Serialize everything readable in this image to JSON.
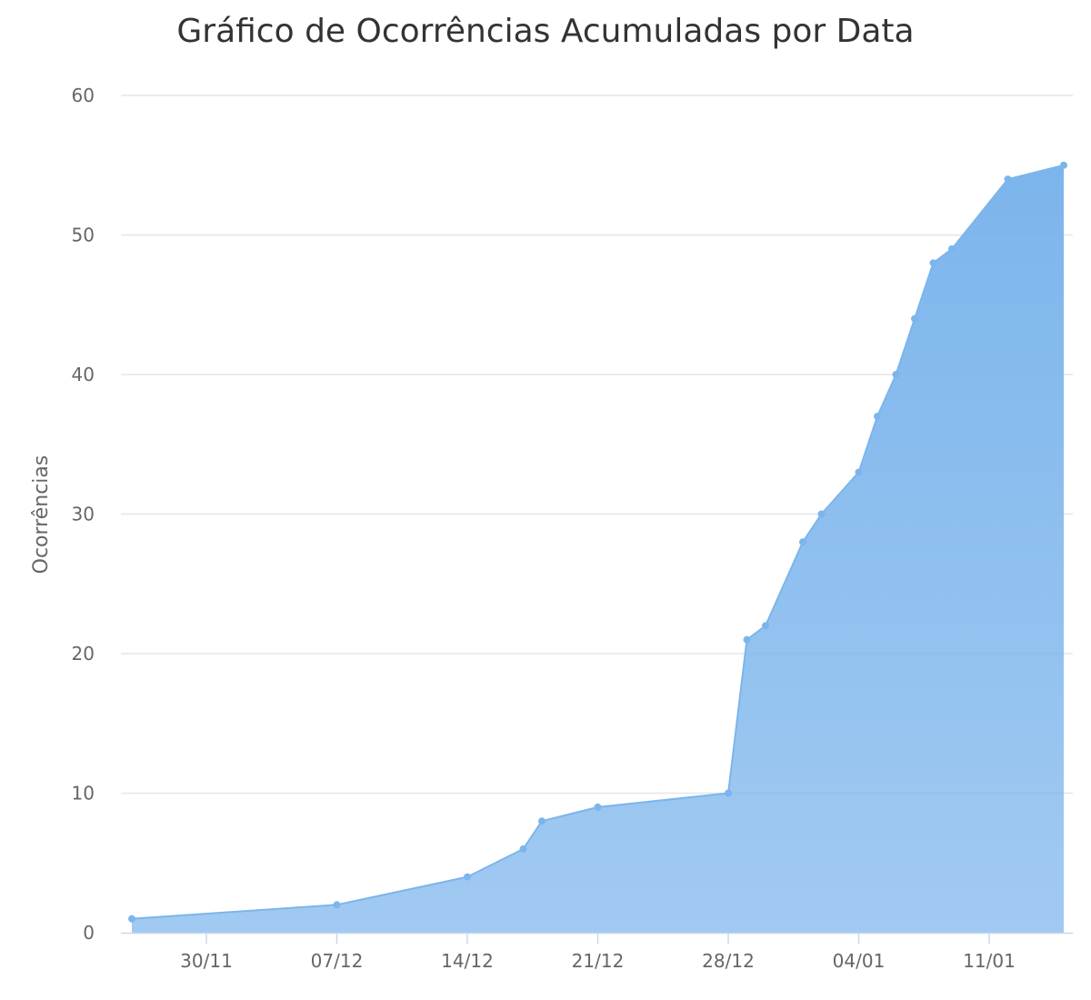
{
  "chart_data": {
    "type": "area",
    "title": "Gráfico de Ocorrências Acumuladas por Data",
    "xlabel": "",
    "ylabel": "Ocorrências",
    "ylim": [
      0,
      60
    ],
    "y_ticks": [
      0,
      10,
      20,
      30,
      40,
      50,
      60
    ],
    "x_ticks": [
      {
        "date": "2023-11-30",
        "label": "30/11"
      },
      {
        "date": "2023-12-07",
        "label": "07/12"
      },
      {
        "date": "2023-12-14",
        "label": "14/12"
      },
      {
        "date": "2023-12-21",
        "label": "21/12"
      },
      {
        "date": "2023-12-28",
        "label": "28/12"
      },
      {
        "date": "2024-01-04",
        "label": "04/01"
      },
      {
        "date": "2024-01-11",
        "label": "11/01"
      }
    ],
    "xlim": [
      "2023-11-25",
      "2024-01-15"
    ],
    "grid": true,
    "legend": "none",
    "color": "#7cb5ec",
    "points": [
      {
        "x": "2023-11-26",
        "y": 1
      },
      {
        "x": "2023-12-07",
        "y": 2
      },
      {
        "x": "2023-12-14",
        "y": 4
      },
      {
        "x": "2023-12-17",
        "y": 6
      },
      {
        "x": "2023-12-18",
        "y": 8
      },
      {
        "x": "2023-12-21",
        "y": 9
      },
      {
        "x": "2023-12-28",
        "y": 10
      },
      {
        "x": "2023-12-29",
        "y": 21
      },
      {
        "x": "2023-12-30",
        "y": 22
      },
      {
        "x": "2024-01-01",
        "y": 28
      },
      {
        "x": "2024-01-02",
        "y": 30
      },
      {
        "x": "2024-01-04",
        "y": 33
      },
      {
        "x": "2024-01-05",
        "y": 37
      },
      {
        "x": "2024-01-06",
        "y": 40
      },
      {
        "x": "2024-01-07",
        "y": 44
      },
      {
        "x": "2024-01-08",
        "y": 48
      },
      {
        "x": "2024-01-09",
        "y": 49
      },
      {
        "x": "2024-01-12",
        "y": 54
      },
      {
        "x": "2024-01-15",
        "y": 55
      }
    ]
  }
}
